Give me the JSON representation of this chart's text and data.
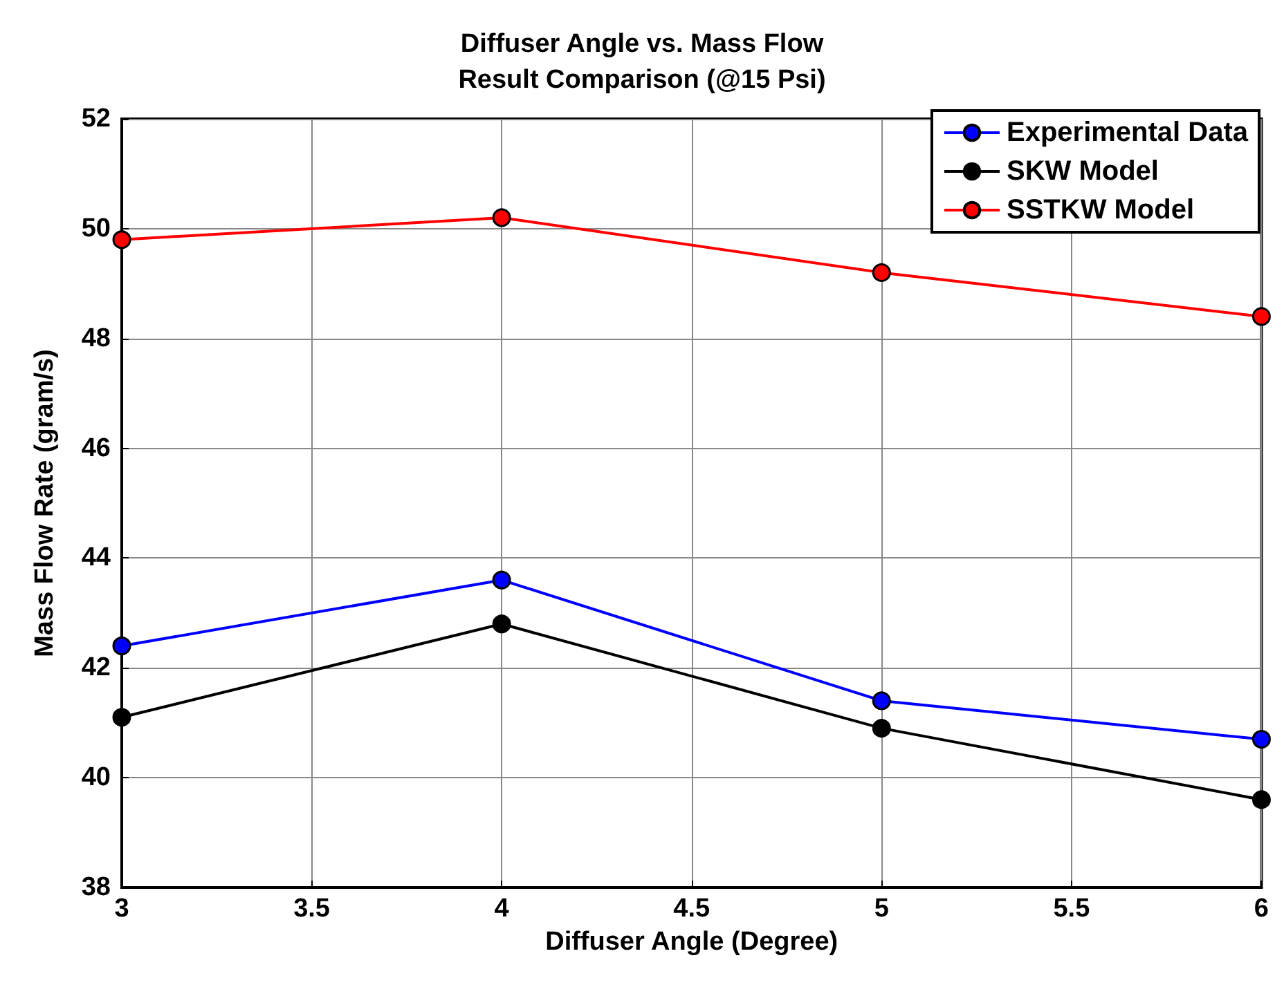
{
  "chart_data": {
    "type": "line",
    "title": "Diffuser Angle vs. Mass Flow\nResult Comparison (@15 Psi)",
    "xlabel": "Diffuser Angle (Degree)",
    "ylabel": "Mass Flow Rate (gram/s)",
    "x": [
      3,
      4,
      5,
      6
    ],
    "series": [
      {
        "name": "Experimental Data",
        "color": "#0000ff",
        "values": [
          42.4,
          43.6,
          41.4,
          40.7
        ]
      },
      {
        "name": "SKW Model",
        "color": "#000000",
        "values": [
          41.1,
          42.8,
          40.9,
          39.6
        ]
      },
      {
        "name": "SSTKW Model",
        "color": "#ff0000",
        "values": [
          49.8,
          50.2,
          49.2,
          48.4
        ]
      }
    ],
    "xlim": [
      3,
      6
    ],
    "xticks": [
      3,
      3.5,
      4,
      4.5,
      5,
      5.5,
      6
    ],
    "ylim": [
      38,
      52
    ],
    "yticks": [
      38,
      40,
      42,
      44,
      46,
      48,
      50,
      52
    ],
    "grid": true,
    "legend": "top right",
    "marker": "circle",
    "line_style": "solid"
  }
}
